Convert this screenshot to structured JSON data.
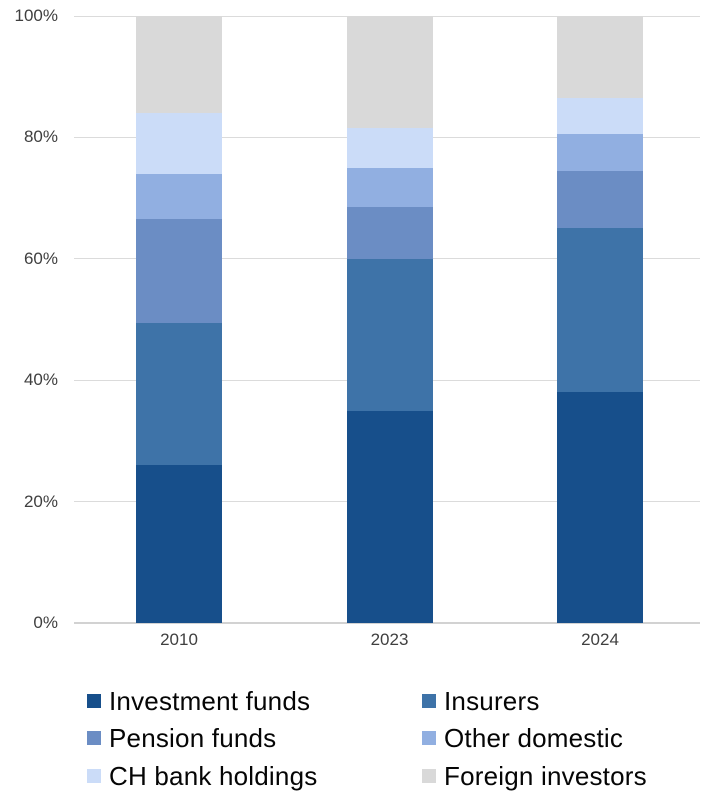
{
  "chart_data": {
    "type": "bar",
    "variant": "stacked-percent-column",
    "title": "",
    "categories": [
      "2010",
      "2023",
      "2024"
    ],
    "series": [
      {
        "name": "Investment funds",
        "color": "#174F8B",
        "values": [
          26,
          35,
          38
        ]
      },
      {
        "name": "Insurers",
        "color": "#3E73A8",
        "values": [
          23.5,
          25,
          27
        ]
      },
      {
        "name": "Pension funds",
        "color": "#6B8DC4",
        "values": [
          17,
          8.5,
          9.5
        ]
      },
      {
        "name": "Other domestic",
        "color": "#91AFE1",
        "values": [
          7.5,
          6.5,
          6
        ]
      },
      {
        "name": "CH bank holdings",
        "color": "#CBDCF8",
        "values": [
          10,
          6.5,
          6
        ]
      },
      {
        "name": "Foreign investors",
        "color": "#D9D9D9",
        "values": [
          16,
          18.5,
          13.5
        ]
      }
    ],
    "ylim": [
      0,
      100
    ],
    "y_ticks": [
      {
        "value": 0,
        "label": "0%"
      },
      {
        "value": 20,
        "label": "20%"
      },
      {
        "value": 40,
        "label": "40%"
      },
      {
        "value": 60,
        "label": "60%"
      },
      {
        "value": 80,
        "label": "80%"
      },
      {
        "value": 100,
        "label": "100%"
      }
    ],
    "xlabel": "",
    "ylabel": "",
    "grid": "horizontal",
    "legend_position": "bottom",
    "legend_columns": 2
  },
  "colors": {
    "grid_line": "#DBDBDB",
    "axis_line": "#D2D2D2",
    "tick_label": "#3F3F3F",
    "legend_text": "#050505",
    "background": "#FFFFFF"
  }
}
